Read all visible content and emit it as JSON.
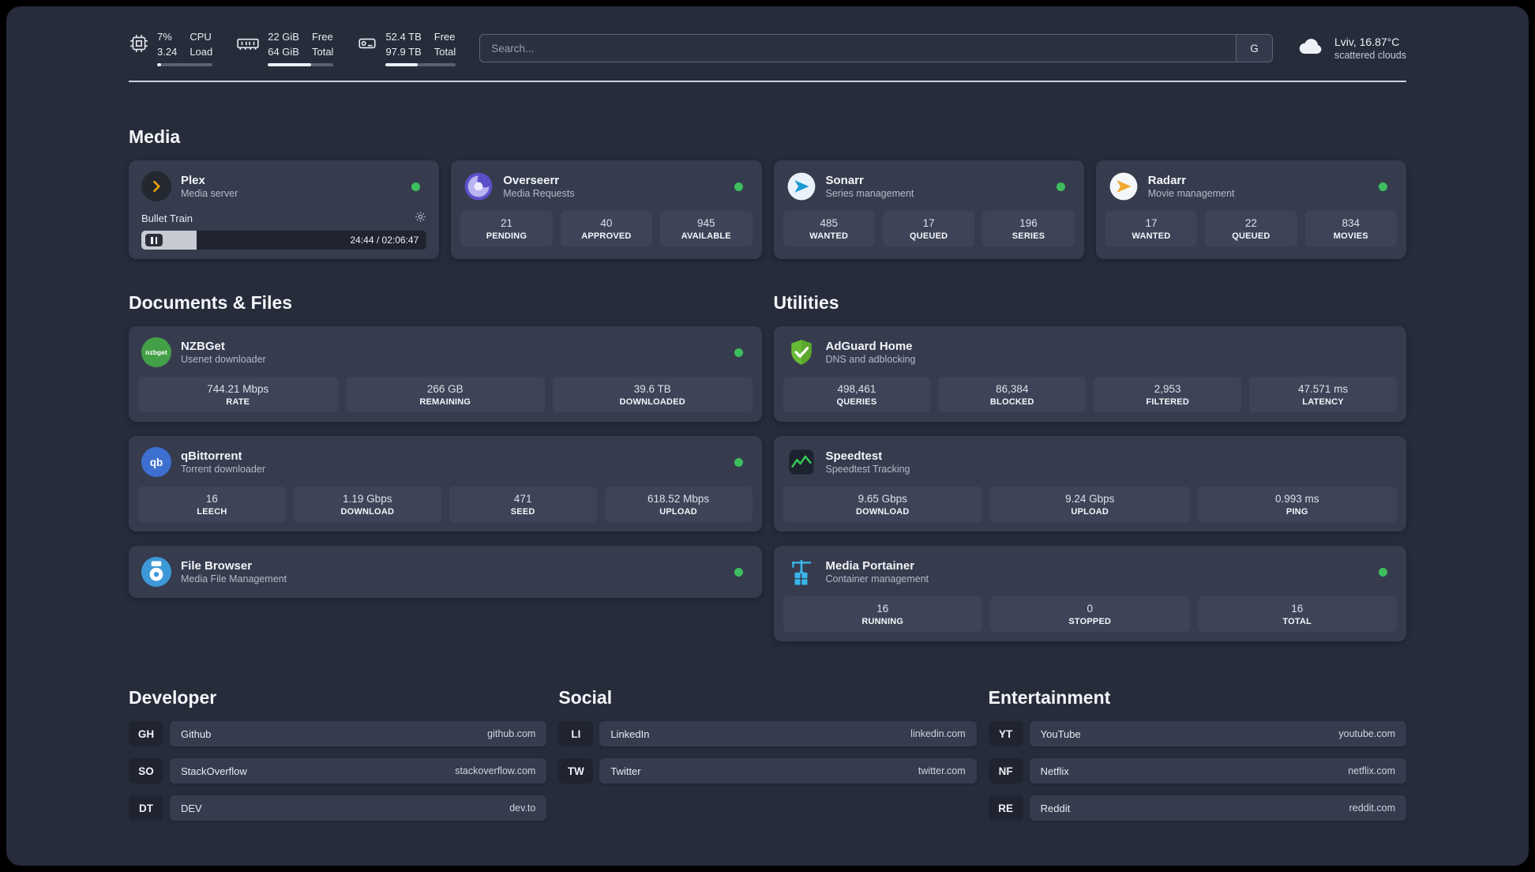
{
  "colors": {
    "background": "#272c3b",
    "card": "#363c4e",
    "stat_tile": "#3e4457",
    "status_online": "#3ebd5e",
    "plex_accent": "#e5a00d",
    "adguard_green": "#68bc35",
    "portainer_blue": "#39b5e8"
  },
  "header": {
    "cpu": {
      "values": [
        "7%",
        "3.24"
      ],
      "labels": [
        "CPU",
        "Load"
      ],
      "progress_pct": 7
    },
    "memory": {
      "values": [
        "22 GiB",
        "64 GiB"
      ],
      "labels": [
        "Free",
        "Total"
      ],
      "progress_pct": 66
    },
    "storage": {
      "values": [
        "52.4 TB",
        "97.9 TB"
      ],
      "labels": [
        "Free",
        "Total"
      ],
      "progress_pct": 46
    },
    "search": {
      "placeholder": "Search...",
      "button": "G"
    },
    "weather": {
      "line1": "Lviv, 16.87°C",
      "line2": "scattered clouds"
    }
  },
  "sections": {
    "media": {
      "title": "Media",
      "cards": [
        {
          "name": "Plex",
          "description": "Media server",
          "player": {
            "track": "Bullet Train",
            "time": "24:44 / 02:06:47",
            "progress_pct": 19.5
          }
        },
        {
          "name": "Overseerr",
          "description": "Media Requests",
          "stats": [
            {
              "value": "21",
              "label": "PENDING"
            },
            {
              "value": "40",
              "label": "APPROVED"
            },
            {
              "value": "945",
              "label": "AVAILABLE"
            }
          ]
        },
        {
          "name": "Sonarr",
          "description": "Series management",
          "stats": [
            {
              "value": "485",
              "label": "WANTED"
            },
            {
              "value": "17",
              "label": "QUEUED"
            },
            {
              "value": "196",
              "label": "SERIES"
            }
          ]
        },
        {
          "name": "Radarr",
          "description": "Movie management",
          "stats": [
            {
              "value": "17",
              "label": "WANTED"
            },
            {
              "value": "22",
              "label": "QUEUED"
            },
            {
              "value": "834",
              "label": "MOVIES"
            }
          ]
        }
      ]
    },
    "documents": {
      "title": "Documents & Files",
      "cards": [
        {
          "name": "NZBGet",
          "description": "Usenet downloader",
          "stats": [
            {
              "value": "744.21 Mbps",
              "label": "RATE"
            },
            {
              "value": "266 GB",
              "label": "REMAINING"
            },
            {
              "value": "39.6 TB",
              "label": "DOWNLOADED"
            }
          ]
        },
        {
          "name": "qBittorrent",
          "description": "Torrent downloader",
          "stats": [
            {
              "value": "16",
              "label": "LEECH"
            },
            {
              "value": "1.19 Gbps",
              "label": "DOWNLOAD"
            },
            {
              "value": "471",
              "label": "SEED"
            },
            {
              "value": "618.52 Mbps",
              "label": "UPLOAD"
            }
          ]
        },
        {
          "name": "File Browser",
          "description": "Media File Management",
          "stats": []
        }
      ]
    },
    "utilities": {
      "title": "Utilities",
      "cards": [
        {
          "name": "AdGuard Home",
          "description": "DNS and adblocking",
          "stats": [
            {
              "value": "498,461",
              "label": "QUERIES"
            },
            {
              "value": "86,384",
              "label": "BLOCKED"
            },
            {
              "value": "2,953",
              "label": "FILTERED"
            },
            {
              "value": "47.571 ms",
              "label": "LATENCY"
            }
          ]
        },
        {
          "name": "Speedtest",
          "description": "Speedtest Tracking",
          "stats": [
            {
              "value": "9.65 Gbps",
              "label": "DOWNLOAD"
            },
            {
              "value": "9.24 Gbps",
              "label": "UPLOAD"
            },
            {
              "value": "0.993 ms",
              "label": "PING"
            }
          ]
        },
        {
          "name": "Media Portainer",
          "description": "Container management",
          "stats": [
            {
              "value": "16",
              "label": "RUNNING"
            },
            {
              "value": "0",
              "label": "STOPPED"
            },
            {
              "value": "16",
              "label": "TOTAL"
            }
          ]
        }
      ]
    }
  },
  "bookmarks": [
    {
      "title": "Developer",
      "items": [
        {
          "abbr": "GH",
          "name": "Github",
          "url": "github.com"
        },
        {
          "abbr": "SO",
          "name": "StackOverflow",
          "url": "stackoverflow.com"
        },
        {
          "abbr": "DT",
          "name": "DEV",
          "url": "dev.to"
        }
      ]
    },
    {
      "title": "Social",
      "items": [
        {
          "abbr": "LI",
          "name": "LinkedIn",
          "url": "linkedin.com"
        },
        {
          "abbr": "TW",
          "name": "Twitter",
          "url": "twitter.com"
        }
      ]
    },
    {
      "title": "Entertainment",
      "items": [
        {
          "abbr": "YT",
          "name": "YouTube",
          "url": "youtube.com"
        },
        {
          "abbr": "NF",
          "name": "Netflix",
          "url": "netflix.com"
        },
        {
          "abbr": "RE",
          "name": "Reddit",
          "url": "reddit.com"
        }
      ]
    }
  ]
}
